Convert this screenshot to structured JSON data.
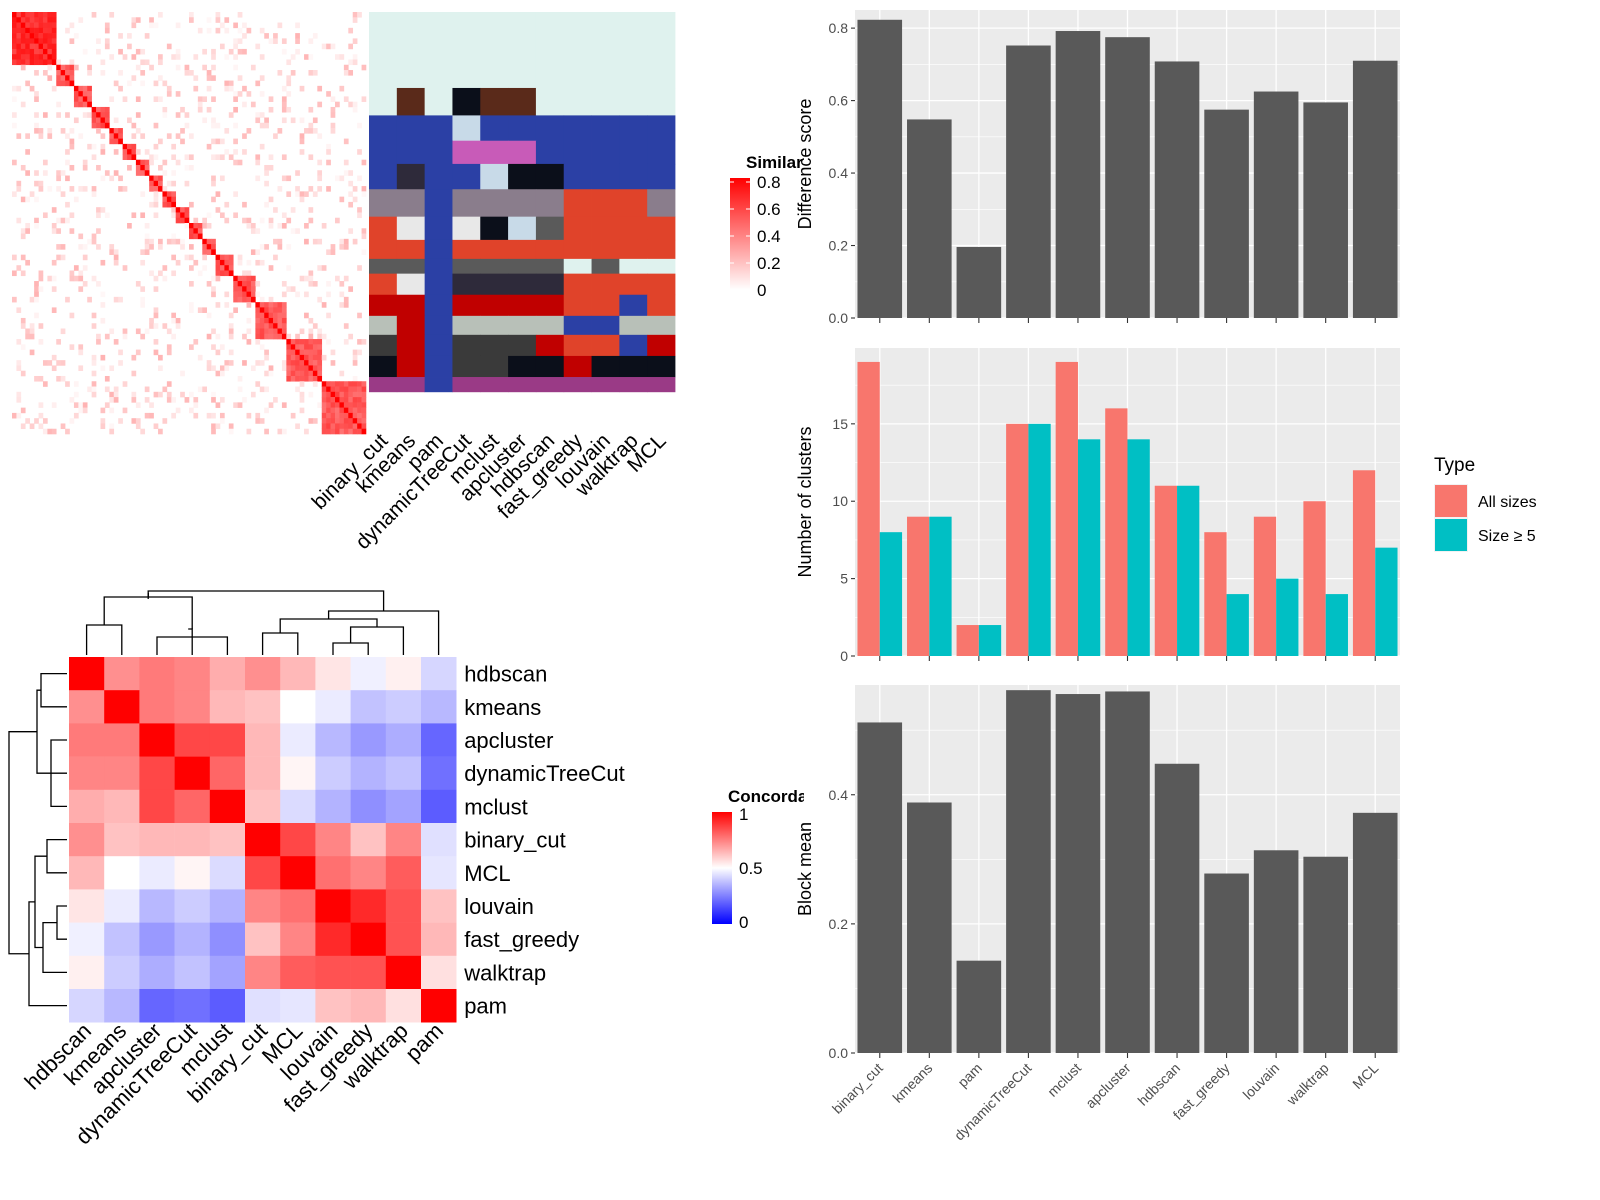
{
  "colors": {
    "panel_bg": "#ebebeb",
    "grid": "#ffffff",
    "bar": "#595959",
    "all_sizes": "#f8766d",
    "size_ge5": "#00bfc4",
    "sim_low": "#ffffff",
    "sim_high": "#ff0000",
    "conc_low": "#0000ff",
    "conc_mid": "#ffffff",
    "conc_high": "#ff0000",
    "cluster_palette": [
      "#dff2ee",
      "#5a2a1a",
      "#2b40a5",
      "#0b0f1a",
      "#c85bb8",
      "#c8dae8",
      "#8a7d8c",
      "#e0432a",
      "#5a5a5a",
      "#c00000",
      "#b8c0b8",
      "#e8e8e8",
      "#3a3a3a",
      "#9a3a86",
      "#2e2a3a",
      "#d0d0d0"
    ]
  },
  "heatmap_similarity": {
    "legend_title": "Similarity",
    "legend_ticks": [
      "0.8",
      "0.6",
      "0.4",
      "0.2",
      "0"
    ],
    "columns": [
      "binary_cut",
      "kmeans",
      "pam",
      "dynamicTreeCut",
      "mclust",
      "apcluster",
      "hdbscan",
      "fast_greedy",
      "louvain",
      "walktrap",
      "MCL"
    ]
  },
  "concordance": {
    "legend_title": "Concordance",
    "legend_ticks": [
      "1",
      "0.5",
      "0"
    ],
    "rows": [
      "hdbscan",
      "kmeans",
      "apcluster",
      "dynamicTreeCut",
      "mclust",
      "binary_cut",
      "MCL",
      "louvain",
      "fast_greedy",
      "walktrap",
      "pam"
    ],
    "cols": [
      "hdbscan",
      "kmeans",
      "apcluster",
      "dynamicTreeCut",
      "mclust",
      "binary_cut",
      "MCL",
      "louvain",
      "fast_greedy",
      "walktrap",
      "pam"
    ],
    "matrix": [
      [
        1.0,
        0.72,
        0.76,
        0.74,
        0.66,
        0.72,
        0.64,
        0.55,
        0.47,
        0.53,
        0.42
      ],
      [
        0.72,
        1.0,
        0.76,
        0.74,
        0.64,
        0.62,
        0.5,
        0.46,
        0.38,
        0.4,
        0.36
      ],
      [
        0.76,
        0.76,
        1.0,
        0.86,
        0.86,
        0.64,
        0.46,
        0.36,
        0.3,
        0.34,
        0.2
      ],
      [
        0.74,
        0.74,
        0.86,
        1.0,
        0.8,
        0.64,
        0.52,
        0.4,
        0.35,
        0.38,
        0.22
      ],
      [
        0.66,
        0.64,
        0.86,
        0.8,
        1.0,
        0.62,
        0.43,
        0.35,
        0.28,
        0.32,
        0.18
      ],
      [
        0.72,
        0.62,
        0.64,
        0.64,
        0.62,
        1.0,
        0.86,
        0.74,
        0.62,
        0.74,
        0.44
      ],
      [
        0.64,
        0.5,
        0.46,
        0.52,
        0.43,
        0.86,
        1.0,
        0.78,
        0.74,
        0.82,
        0.45
      ],
      [
        0.55,
        0.46,
        0.36,
        0.4,
        0.35,
        0.74,
        0.78,
        1.0,
        0.92,
        0.84,
        0.62
      ],
      [
        0.47,
        0.38,
        0.3,
        0.35,
        0.28,
        0.62,
        0.74,
        0.92,
        1.0,
        0.84,
        0.64
      ],
      [
        0.53,
        0.4,
        0.34,
        0.38,
        0.32,
        0.74,
        0.82,
        0.84,
        0.84,
        1.0,
        0.56
      ],
      [
        0.42,
        0.36,
        0.2,
        0.22,
        0.18,
        0.44,
        0.45,
        0.62,
        0.64,
        0.56,
        1.0
      ]
    ]
  },
  "chart_data": [
    {
      "type": "bar",
      "ylabel": "Difference score",
      "ylim": [
        0,
        0.85
      ],
      "yticks": [
        "0.0",
        "0.2",
        "0.4",
        "0.6",
        "0.8"
      ],
      "categories": [
        "binary_cut",
        "kmeans",
        "pam",
        "dynamicTreeCut",
        "mclust",
        "apcluster",
        "hdbscan",
        "fast_greedy",
        "louvain",
        "walktrap",
        "MCL"
      ],
      "values": [
        0.823,
        0.548,
        0.196,
        0.752,
        0.792,
        0.775,
        0.708,
        0.575,
        0.625,
        0.595,
        0.71
      ]
    },
    {
      "type": "bar",
      "ylabel": "Number of clusters",
      "ylim": [
        0,
        19.9
      ],
      "yticks": [
        "0",
        "5",
        "10",
        "15"
      ],
      "categories": [
        "binary_cut",
        "kmeans",
        "pam",
        "dynamicTreeCut",
        "mclust",
        "apcluster",
        "hdbscan",
        "fast_greedy",
        "louvain",
        "walktrap",
        "MCL"
      ],
      "legend": {
        "title": "Type",
        "position": "right"
      },
      "series": [
        {
          "name": "All sizes",
          "values": [
            19,
            9,
            2,
            15,
            19,
            16,
            11,
            8,
            9,
            10,
            12
          ]
        },
        {
          "name": "Size ≥ 5",
          "values": [
            8,
            9,
            2,
            15,
            14,
            14,
            11,
            4,
            5,
            4,
            7
          ]
        }
      ]
    },
    {
      "type": "bar",
      "ylabel": "Block mean",
      "ylim": [
        0,
        0.57
      ],
      "yticks": [
        "0.0",
        "0.2",
        "0.4"
      ],
      "categories": [
        "binary_cut",
        "kmeans",
        "pam",
        "dynamicTreeCut",
        "mclust",
        "apcluster",
        "hdbscan",
        "fast_greedy",
        "louvain",
        "walktrap",
        "MCL"
      ],
      "values": [
        0.512,
        0.388,
        0.143,
        0.562,
        0.556,
        0.56,
        0.448,
        0.278,
        0.314,
        0.304,
        0.372
      ]
    }
  ]
}
